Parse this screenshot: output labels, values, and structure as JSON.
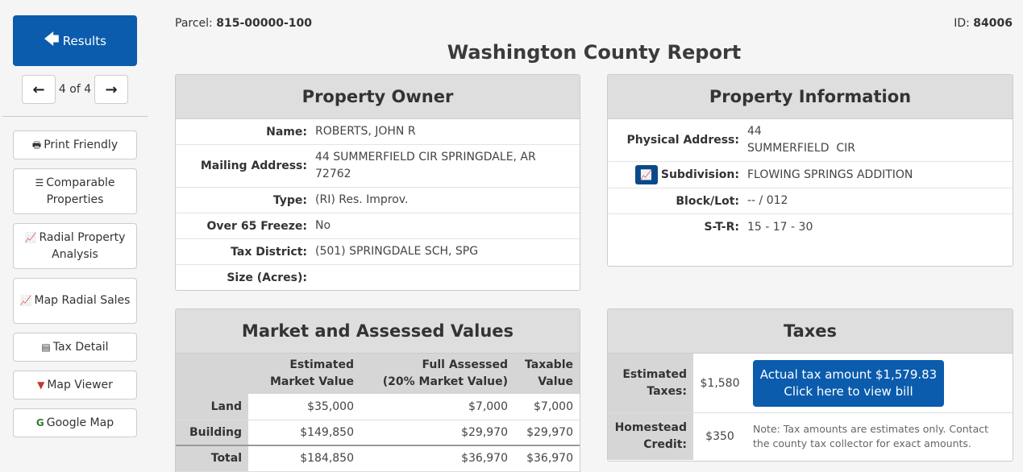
{
  "sidebar": {
    "results_label": "Results",
    "pager_text": "4 of 4",
    "buttons": {
      "print": "Print Friendly",
      "comparable": "Comparable Properties",
      "radial_analysis": "Radial Property Analysis",
      "map_radial": "Map Radial Sales",
      "tax_detail": "Tax Detail",
      "map_viewer": "Map Viewer",
      "google_map": "Google Map"
    }
  },
  "header": {
    "parcel_label": "Parcel:",
    "parcel_value": "815-00000-100",
    "id_label": "ID:",
    "id_value": "84006",
    "title": "Washington County Report"
  },
  "owner": {
    "title": "Property Owner",
    "rows": [
      {
        "label": "Name:",
        "value": "ROBERTS, JOHN R"
      },
      {
        "label": "Mailing Address:",
        "value": "44 SUMMERFIELD CIR SPRINGDALE, AR 72762"
      },
      {
        "label": "Type:",
        "value": "(RI) Res. Improv."
      },
      {
        "label": "Over 65 Freeze:",
        "value": "No"
      },
      {
        "label": "Tax District:",
        "value": "(501) SPRINGDALE SCH, SPG"
      },
      {
        "label": "Size (Acres):",
        "value": ""
      }
    ]
  },
  "info": {
    "title": "Property Information",
    "address_label": "Physical Address:",
    "address_line1": "44",
    "address_line2": "SUMMERFIELD  CIR",
    "subdivision_label": "Subdivision:",
    "subdivision_value": "FLOWING SPRINGS ADDITION",
    "blocklot_label": "Block/Lot:",
    "blocklot_value": "-- / 012",
    "str_label": "S-T-R:",
    "str_value": "15 - 17 - 30"
  },
  "market": {
    "title": "Market and Assessed Values",
    "col_market_1": "Estimated",
    "col_market_2": "Market Value",
    "col_full_1": "Full Assessed",
    "col_full_2": "(20% Market Value)",
    "col_tax_1": "Taxable",
    "col_tax_2": "Value",
    "rows": [
      {
        "label": "Land",
        "market": "$35,000",
        "full": "$7,000",
        "taxable": "$7,000"
      },
      {
        "label": "Building",
        "market": "$149,850",
        "full": "$29,970",
        "taxable": "$29,970"
      },
      {
        "label": "Total",
        "market": "$184,850",
        "full": "$36,970",
        "taxable": "$36,970"
      }
    ]
  },
  "taxes": {
    "title": "Taxes",
    "est_label_1": "Estimated",
    "est_label_2": "Taxes:",
    "est_value": "$1,580",
    "bill_line1": "Actual tax amount $1,579.83",
    "bill_line2": "Click here to view bill",
    "home_label_1": "Homestead",
    "home_label_2": "Credit:",
    "home_value": "$350",
    "note": "Note: Tax amounts are estimates only. Contact the county tax collector for exact amounts."
  },
  "colors": {
    "primary": "#0b5cad",
    "panel_header": "#dedede"
  }
}
